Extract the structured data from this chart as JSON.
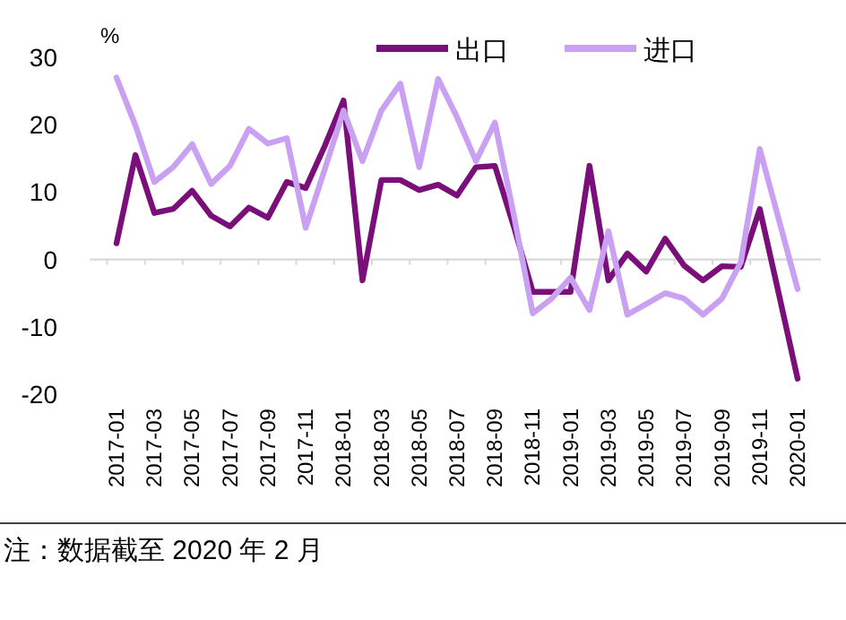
{
  "chart_data": {
    "type": "line",
    "ylabel": "%",
    "categories": [
      "2017-01",
      null,
      "2017-03",
      null,
      "2017-05",
      null,
      "2017-07",
      null,
      "2017-09",
      null,
      "2017-11",
      null,
      "2018-01",
      null,
      "2018-03",
      null,
      "2018-05",
      null,
      "2018-07",
      null,
      "2018-09",
      null,
      "2018-11",
      null,
      "2019-01",
      null,
      "2019-03",
      null,
      "2019-05",
      null,
      "2019-07",
      null,
      "2019-09",
      null,
      "2019-11",
      null,
      "2020-01"
    ],
    "series": [
      {
        "name": "出口",
        "color": "#7b0f7a",
        "values": [
          2.4,
          15.5,
          6.9,
          7.5,
          10.2,
          6.5,
          4.9,
          7.7,
          6.2,
          11.5,
          10.6,
          16.8,
          23.6,
          -3.1,
          11.8,
          11.8,
          10.3,
          11.1,
          9.5,
          13.7,
          13.9,
          4.9,
          -4.8,
          -4.8,
          -4.8,
          13.9,
          -3.1,
          0.9,
          -1.8,
          3.1,
          -0.9,
          -3.1,
          -1.0,
          -1.1,
          7.5,
          -5.0,
          -17.7
        ]
      },
      {
        "name": "进口",
        "color": "#c9a0f2",
        "values": [
          27.0,
          19.9,
          11.5,
          13.7,
          17.1,
          11.2,
          13.9,
          19.4,
          17.2,
          18.0,
          4.7,
          13.3,
          22.1,
          14.6,
          22.1,
          26.1,
          13.7,
          26.8,
          21.1,
          14.6,
          20.3,
          6.6,
          -8.0,
          -5.8,
          -2.7,
          -7.5,
          4.2,
          -8.2,
          -6.6,
          -5.0,
          -5.8,
          -8.2,
          -5.8,
          -0.4,
          16.4,
          6.0,
          -4.4
        ]
      }
    ],
    "ylim": [
      -20,
      30
    ],
    "yticks": [
      -20,
      -10,
      0,
      10,
      20,
      30
    ],
    "legend": "top",
    "marker": "none",
    "line_style": "solid",
    "annotations": [
      "注：数据截至 2020 年 2 月"
    ]
  }
}
